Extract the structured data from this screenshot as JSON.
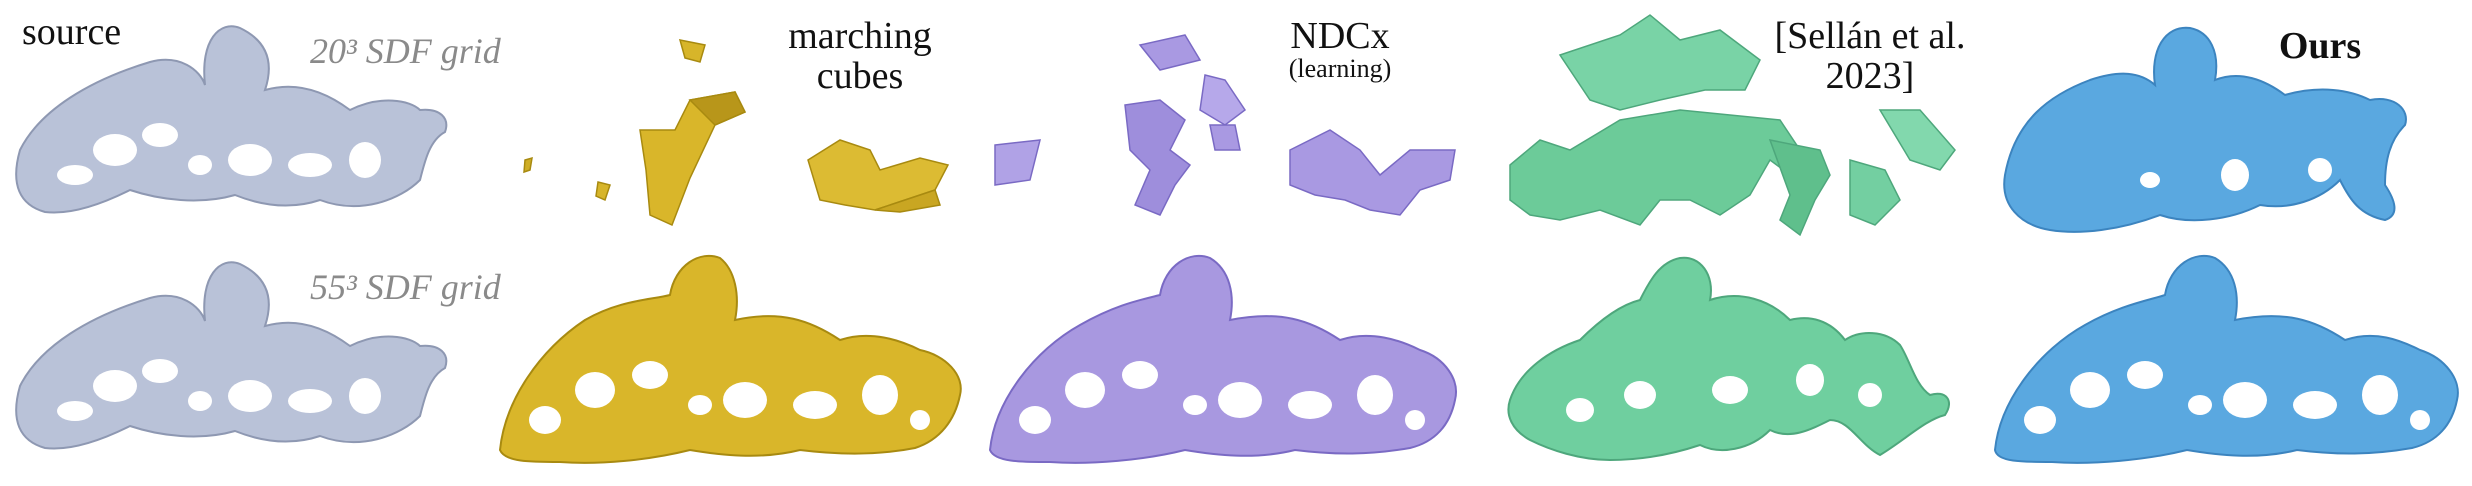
{
  "labels": {
    "source": "source",
    "grid_low": "20³ SDF grid",
    "grid_high": "55³ SDF grid",
    "marching_cubes_line1": "marching",
    "marching_cubes_line2": "cubes",
    "ndcx_title": "NDCx",
    "ndcx_sub": "(learning)",
    "sellan_line1": "[Sellán et al.",
    "sellan_line2": "2023]",
    "ours": "Ours"
  },
  "colors": {
    "source": "#b7c0d6",
    "marching_cubes": "#d9b62a",
    "ndcx": "#a898e0",
    "sellan": "#6fcf9f",
    "ours": "#5aa8e0",
    "grid_label": "#8a8a8a"
  }
}
